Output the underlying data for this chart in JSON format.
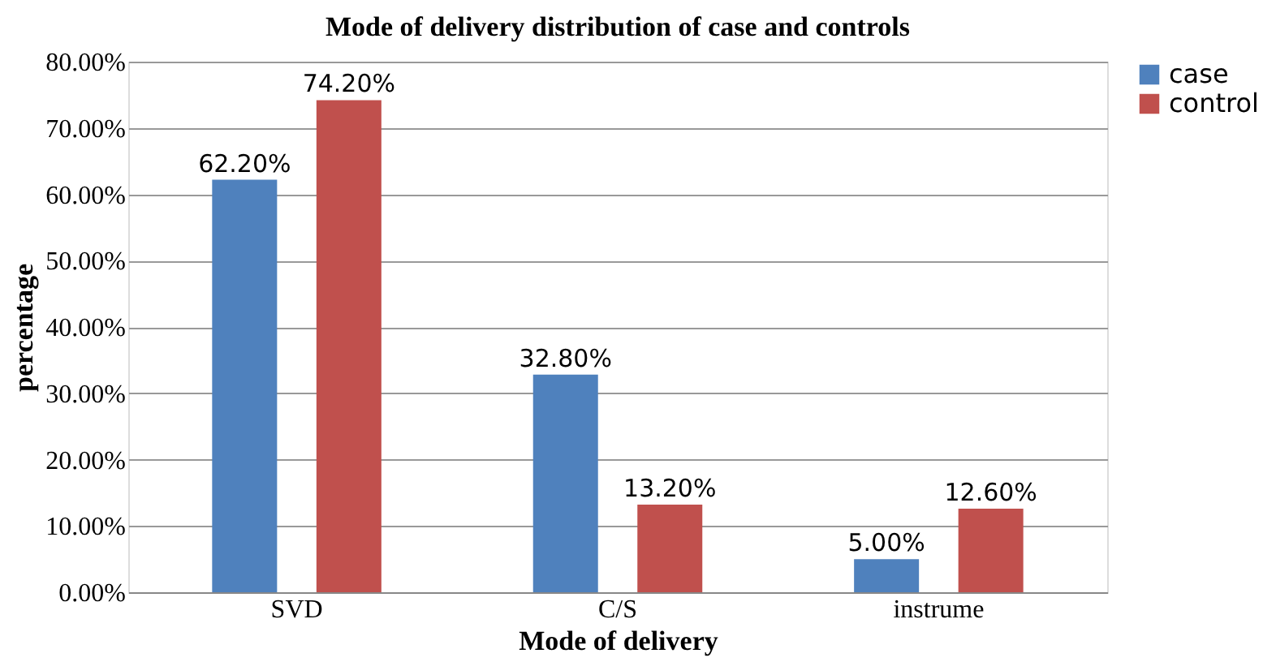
{
  "chart_data": {
    "type": "bar",
    "title": "Mode of delivery distribution of case and controls",
    "xlabel": "Mode of delivery",
    "ylabel": "percentage",
    "categories": [
      "SVD",
      "C/S",
      "instrume"
    ],
    "series": [
      {
        "name": "case",
        "color": "#4f81bd",
        "values": [
          62.2,
          32.8,
          5.0
        ],
        "value_labels": [
          "62.20%",
          "32.80%",
          "5.00%"
        ]
      },
      {
        "name": "control",
        "color": "#c0504d",
        "values": [
          74.2,
          13.2,
          12.6
        ],
        "value_labels": [
          "74.20%",
          "13.20%",
          "12.60%"
        ]
      }
    ],
    "ylim": [
      0,
      80
    ],
    "yticks": [
      {
        "value": 0,
        "label": "0.00%"
      },
      {
        "value": 10,
        "label": "10.00%"
      },
      {
        "value": 20,
        "label": "20.00%"
      },
      {
        "value": 30,
        "label": "30.00%"
      },
      {
        "value": 40,
        "label": "40.00%"
      },
      {
        "value": 50,
        "label": "50.00%"
      },
      {
        "value": 60,
        "label": "60.00%"
      },
      {
        "value": 70,
        "label": "70.00%"
      },
      {
        "value": 80,
        "label": "80.00%"
      }
    ],
    "grid": "y",
    "legend": "right"
  }
}
